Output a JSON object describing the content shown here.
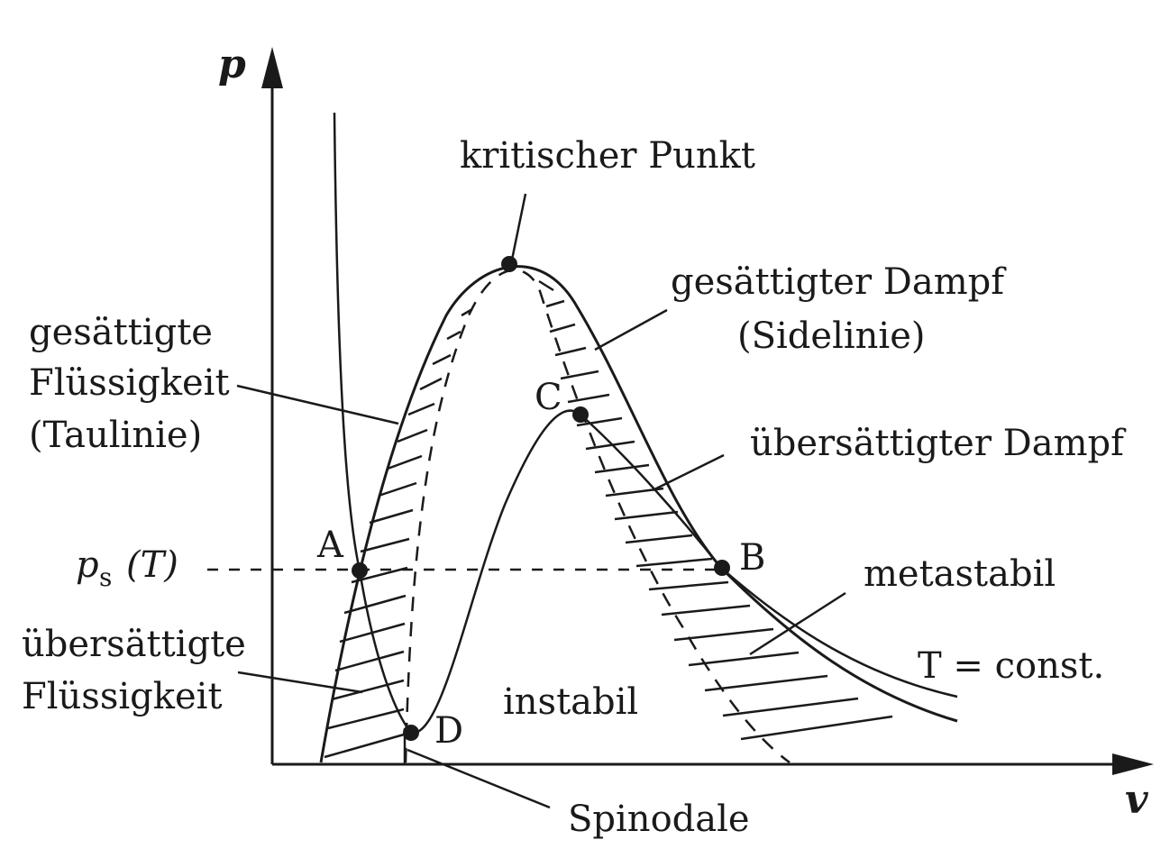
{
  "axes": {
    "y_label": "p",
    "x_label": "v"
  },
  "pressure_label": {
    "symbol": "p",
    "subscript": "s",
    "suffix": "(T)"
  },
  "labels": {
    "critical_point": "kritischer Punkt",
    "saturated_vapor_line1": "gesättigter Dampf",
    "saturated_vapor_line2": "(Sidelinie)",
    "saturated_liquid_line1": "gesättigte",
    "saturated_liquid_line2": "Flüssigkeit",
    "saturated_liquid_line3": "(Taulinie)",
    "supersaturated_vapor": "übersättigter Dampf",
    "metastable": "metastabil",
    "isotherm": "T = const.",
    "supersaturated_liquid_line1": "übersättigte",
    "supersaturated_liquid_line2": "Flüssigkeit",
    "unstable": "instabil",
    "spinodal": "Spinodale"
  },
  "points": {
    "A": "A",
    "B": "B",
    "C": "C",
    "D": "D"
  }
}
